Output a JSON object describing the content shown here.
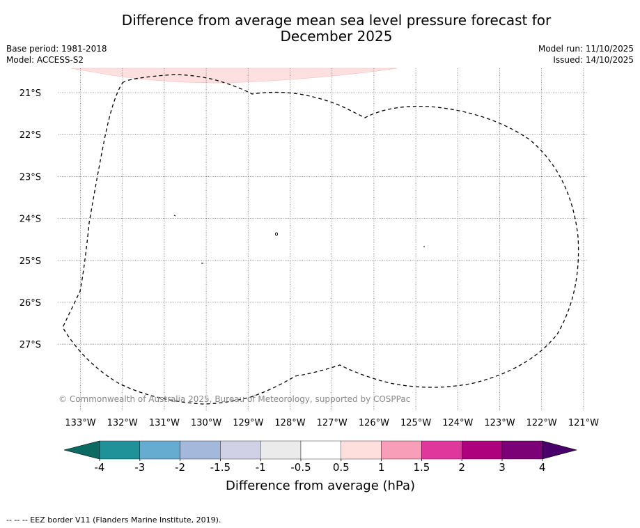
{
  "title_line1": "Difference from average mean sea level pressure forecast for",
  "title_line2": "December 2025",
  "meta_left": {
    "base_period": "Base period: 1981-2018",
    "model": "Model: ACCESS-S2"
  },
  "meta_right": {
    "model_run": "Model run: 11/10/2025",
    "issued": "Issued: 14/10/2025"
  },
  "map": {
    "lat_labels": [
      "21°S",
      "22°S",
      "23°S",
      "24°S",
      "25°S",
      "26°S",
      "27°S"
    ],
    "lon_labels": [
      "133°W",
      "132°W",
      "131°W",
      "130°W",
      "129°W",
      "128°W",
      "127°W",
      "126°W",
      "125°W",
      "124°W",
      "123°W",
      "122°W",
      "121°W"
    ],
    "copyright": "© Commonwealth of Australia 2025, Bureau of Meteorology, supported by COSPPac",
    "border_style": "dashed",
    "anomaly_fill_color": "#fde0df"
  },
  "colorbar": {
    "ticks": [
      "-4",
      "-3",
      "-2",
      "-1.5",
      "-1",
      "-0.5",
      "0.5",
      "1",
      "1.5",
      "2",
      "3",
      "4"
    ],
    "colors": [
      "#0b6b63",
      "#1e9199",
      "#66abd0",
      "#a3b8da",
      "#d0d1e7",
      "#ebebeb",
      "#ffffff",
      "#ffdede",
      "#f99eb8",
      "#e0379d",
      "#ad017e",
      "#7c0177",
      "#4a006a"
    ],
    "title": "Difference from average (hPa)"
  },
  "footnote": "--  --  -- EEZ border V11 (Flanders Marine Institute, 2019)."
}
